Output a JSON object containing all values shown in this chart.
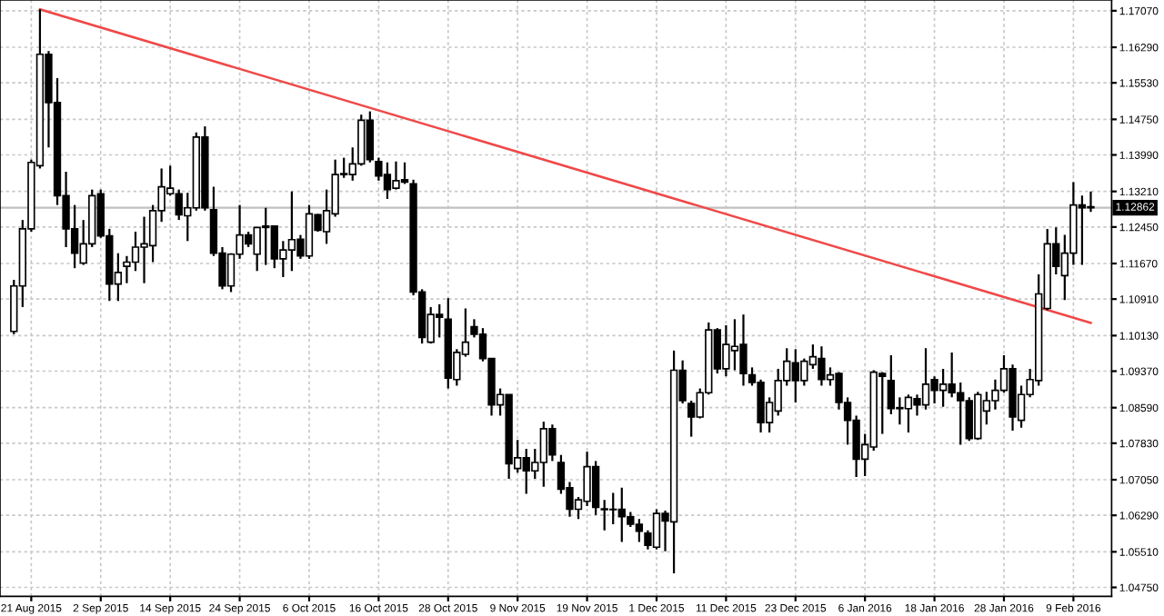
{
  "chart_data": {
    "type": "candlestick",
    "categories": [
      null,
      null,
      "21 Aug 2015",
      null,
      null,
      null,
      null,
      null,
      null,
      null,
      "2 Sep 2015",
      null,
      null,
      null,
      null,
      null,
      null,
      null,
      "14 Sep 2015",
      null,
      null,
      null,
      null,
      null,
      null,
      null,
      "24 Sep 2015",
      null,
      null,
      null,
      null,
      null,
      null,
      null,
      "6 Oct 2015",
      null,
      null,
      null,
      null,
      null,
      null,
      null,
      "16 Oct 2015",
      null,
      null,
      null,
      null,
      null,
      null,
      null,
      "28 Oct 2015",
      null,
      null,
      null,
      null,
      null,
      null,
      null,
      "9 Nov 2015",
      null,
      null,
      null,
      null,
      null,
      null,
      null,
      "19 Nov 2015",
      null,
      null,
      null,
      null,
      null,
      null,
      null,
      "1 Dec 2015",
      null,
      null,
      null,
      null,
      null,
      null,
      null,
      "11 Dec 2015",
      null,
      null,
      null,
      null,
      null,
      null,
      null,
      "23 Dec 2015",
      null,
      null,
      null,
      null,
      null,
      null,
      null,
      "6 Jan 2016",
      null,
      null,
      null,
      null,
      null,
      null,
      null,
      "18 Jan 2016",
      null,
      null,
      null,
      null,
      null,
      null,
      null,
      "28 Jan 2016",
      null,
      null,
      null,
      null,
      null,
      null,
      null,
      "9 Feb 2016",
      null,
      null
    ],
    "ohlc": [
      [
        1.1022,
        1.1132,
        1.1016,
        1.1119
      ],
      [
        1.1119,
        1.126,
        1.1074,
        1.1241
      ],
      [
        1.1241,
        1.1389,
        1.1235,
        1.1383
      ],
      [
        1.1376,
        1.171,
        1.137,
        1.1614
      ],
      [
        1.1614,
        1.1621,
        1.1415,
        1.1511
      ],
      [
        1.1511,
        1.1563,
        1.1292,
        1.1312
      ],
      [
        1.1312,
        1.1363,
        1.1202,
        1.1241
      ],
      [
        1.1241,
        1.1292,
        1.1157,
        1.1189
      ],
      [
        1.1168,
        1.126,
        1.1164,
        1.1209
      ],
      [
        1.1209,
        1.1325,
        1.1202,
        1.1312
      ],
      [
        1.1316,
        1.1325,
        1.1222,
        1.1226
      ],
      [
        1.1226,
        1.1241,
        1.1087,
        1.1123
      ],
      [
        1.1123,
        1.1189,
        1.1087,
        1.1148
      ],
      [
        1.1161,
        1.1183,
        1.1125,
        1.117
      ],
      [
        1.117,
        1.1235,
        1.1151,
        1.1202
      ],
      [
        1.1202,
        1.1267,
        1.1125,
        1.1209
      ],
      [
        1.1205,
        1.1292,
        1.117,
        1.128
      ],
      [
        1.128,
        1.137,
        1.1256,
        1.1331
      ],
      [
        1.1316,
        1.1376,
        1.1312,
        1.1328
      ],
      [
        1.1316,
        1.1325,
        1.126,
        1.1271
      ],
      [
        1.1269,
        1.1318,
        1.1215,
        1.1286
      ],
      [
        1.1286,
        1.1447,
        1.128,
        1.1437
      ],
      [
        1.1437,
        1.146,
        1.128,
        1.1286
      ],
      [
        1.1282,
        1.1331,
        1.1183,
        1.1189
      ],
      [
        1.1189,
        1.1202,
        1.1112,
        1.1119
      ],
      [
        1.1119,
        1.1189,
        1.1106,
        1.1187
      ],
      [
        1.1187,
        1.1292,
        1.1177,
        1.1228
      ],
      [
        1.1228,
        1.1235,
        1.1202,
        1.1209
      ],
      [
        1.1187,
        1.1244,
        1.1151,
        1.1244
      ],
      [
        1.1244,
        1.1286,
        1.1164,
        1.1247
      ],
      [
        1.1247,
        1.1247,
        1.1157,
        1.1177
      ],
      [
        1.1177,
        1.1215,
        1.1138,
        1.1196
      ],
      [
        1.1196,
        1.1321,
        1.1151,
        1.1218
      ],
      [
        1.1219,
        1.1228,
        1.1177,
        1.1183
      ],
      [
        1.1183,
        1.1292,
        1.1177,
        1.1273
      ],
      [
        1.1271,
        1.1273,
        1.1235,
        1.1238
      ],
      [
        1.1235,
        1.1325,
        1.1209,
        1.128
      ],
      [
        1.1273,
        1.1389,
        1.1267,
        1.1357
      ],
      [
        1.1357,
        1.1393,
        1.135,
        1.1359
      ],
      [
        1.1357,
        1.1415,
        1.1344,
        1.138
      ],
      [
        1.138,
        1.1485,
        1.1376,
        1.1473
      ],
      [
        1.1473,
        1.1492,
        1.1383,
        1.1389
      ],
      [
        1.1385,
        1.1393,
        1.1344,
        1.1354
      ],
      [
        1.1357,
        1.1383,
        1.1305,
        1.1325
      ],
      [
        1.1328,
        1.1385,
        1.1325,
        1.1344
      ],
      [
        1.1346,
        1.1383,
        1.1337,
        1.1341
      ],
      [
        1.1337,
        1.1346,
        1.1099,
        1.1106
      ],
      [
        1.1106,
        1.1112,
        1.0996,
        1.1009
      ],
      [
        1.0999,
        1.1074,
        1.0996,
        1.1058
      ],
      [
        1.1058,
        1.108,
        1.1009,
        1.1052
      ],
      [
        1.1048,
        1.1093,
        1.09,
        1.0922
      ],
      [
        1.0919,
        1.0984,
        1.0906,
        1.0977
      ],
      [
        1.0973,
        1.1071,
        1.0968,
        1.0999
      ],
      [
        1.1032,
        1.1048,
        1.1009,
        1.1016
      ],
      [
        1.1016,
        1.1029,
        1.0958,
        1.0964
      ],
      [
        1.0964,
        1.0964,
        1.0842,
        1.0865
      ],
      [
        1.0865,
        1.09,
        1.0842,
        1.0887
      ],
      [
        1.0887,
        1.0887,
        1.0707,
        1.0739
      ],
      [
        1.0729,
        1.079,
        1.072,
        1.0752
      ],
      [
        1.0752,
        1.0771,
        1.0675,
        1.0724
      ],
      [
        1.0724,
        1.0771,
        1.0707,
        1.0742
      ],
      [
        1.0742,
        1.0829,
        1.069,
        1.0814
      ],
      [
        1.0814,
        1.0823,
        1.0745,
        1.0758
      ],
      [
        1.0742,
        1.0758,
        1.0675,
        1.0685
      ],
      [
        1.0688,
        1.07,
        1.0626,
        1.0642
      ],
      [
        1.0642,
        1.0668,
        1.0621,
        1.0662
      ],
      [
        1.0659,
        1.0765,
        1.0649,
        1.0733
      ],
      [
        1.0733,
        1.0745,
        1.063,
        1.0646
      ],
      [
        1.0641,
        1.0662,
        1.0597,
        1.0643
      ],
      [
        1.0641,
        1.0677,
        1.061,
        1.0642
      ],
      [
        1.0642,
        1.0688,
        1.0572,
        1.0626
      ],
      [
        1.0626,
        1.0636,
        1.0604,
        1.061
      ],
      [
        1.061,
        1.0621,
        1.0572,
        1.0595
      ],
      [
        1.0591,
        1.0597,
        1.0556,
        1.0565
      ],
      [
        1.0561,
        1.0642,
        1.0556,
        1.0633
      ],
      [
        1.0633,
        1.0639,
        1.0552,
        1.0617
      ],
      [
        1.0615,
        1.0981,
        1.0505,
        1.0939
      ],
      [
        1.0939,
        1.096,
        1.0868,
        1.0874
      ],
      [
        1.0868,
        1.0874,
        1.0797,
        1.0839
      ],
      [
        1.0839,
        1.09,
        1.0836,
        1.0891
      ],
      [
        1.0891,
        1.1041,
        1.0887,
        1.1025
      ],
      [
        1.1025,
        1.1029,
        1.0932,
        1.0942
      ],
      [
        1.0942,
        1.1035,
        1.0926,
        1.0994
      ],
      [
        1.0981,
        1.1048,
        1.0939,
        1.099
      ],
      [
        1.0994,
        1.1058,
        1.0906,
        1.0932
      ],
      [
        1.0929,
        1.0945,
        1.0906,
        1.0913
      ],
      [
        1.0913,
        1.0919,
        1.0806,
        1.0827
      ],
      [
        1.0827,
        1.0881,
        1.0806,
        1.087
      ],
      [
        1.0852,
        1.0942,
        1.0842,
        1.0917
      ],
      [
        1.0917,
        1.0986,
        1.0906,
        1.0958
      ],
      [
        1.0955,
        1.0984,
        1.087,
        1.0917
      ],
      [
        1.0917,
        1.0964,
        1.0906,
        1.0958
      ],
      [
        1.0951,
        1.0994,
        1.0942,
        1.0968
      ],
      [
        1.0964,
        1.099,
        1.0906,
        1.0919
      ],
      [
        1.0919,
        1.0945,
        1.0906,
        1.0929
      ],
      [
        1.0932,
        1.0935,
        1.0855,
        1.087
      ],
      [
        1.087,
        1.0881,
        1.078,
        1.0832
      ],
      [
        1.0832,
        1.0842,
        1.0711,
        1.0749
      ],
      [
        1.0749,
        1.0803,
        1.0713,
        1.078
      ],
      [
        1.0775,
        1.0939,
        1.0767,
        1.0935
      ],
      [
        1.0932,
        1.0935,
        1.0803,
        1.0926
      ],
      [
        1.0917,
        1.0971,
        1.0845,
        1.0857
      ],
      [
        1.0857,
        1.0881,
        1.0823,
        1.0859
      ],
      [
        1.0857,
        1.0887,
        1.0806,
        1.0881
      ],
      [
        1.0878,
        1.0887,
        1.0842,
        1.0865
      ],
      [
        1.0865,
        1.0986,
        1.0855,
        1.0909
      ],
      [
        1.0919,
        1.0926,
        1.0868,
        1.0896
      ],
      [
        1.0896,
        1.0942,
        1.0861,
        1.0909
      ],
      [
        1.0909,
        1.0977,
        1.0881,
        1.0891
      ],
      [
        1.0891,
        1.0913,
        1.078,
        1.0874
      ],
      [
        1.0874,
        1.0881,
        1.0788,
        1.0793
      ],
      [
        1.0793,
        1.0893,
        1.079,
        1.0887
      ],
      [
        1.0852,
        1.0893,
        1.0823,
        1.0874
      ],
      [
        1.0874,
        1.0919,
        1.0855,
        1.0896
      ],
      [
        1.0896,
        1.0971,
        1.0891,
        1.0942
      ],
      [
        1.0942,
        1.0951,
        1.081,
        1.0839
      ],
      [
        1.0832,
        1.0906,
        1.0816,
        1.0887
      ],
      [
        1.0887,
        1.0942,
        1.0881,
        1.0919
      ],
      [
        1.0917,
        1.1144,
        1.0906,
        1.1102
      ],
      [
        1.1071,
        1.1241,
        1.1067,
        1.1209
      ],
      [
        1.1209,
        1.1244,
        1.1144,
        1.1161
      ],
      [
        1.1141,
        1.1228,
        1.1089,
        1.1189
      ],
      [
        1.1189,
        1.1341,
        1.1164,
        1.1292
      ],
      [
        1.1292,
        1.1312,
        1.1164,
        1.1286
      ],
      [
        1.1288,
        1.1321,
        1.1277,
        1.1286
      ]
    ],
    "series": [
      {
        "type": "line",
        "color": "#f04848",
        "values": [
          null,
          null,
          null,
          1.171,
          null,
          null,
          null,
          null,
          null,
          null,
          null,
          null,
          null,
          null,
          null,
          null,
          null,
          null,
          null,
          null,
          null,
          null,
          null,
          null,
          null,
          null,
          null,
          null,
          null,
          null,
          null,
          null,
          null,
          null,
          null,
          null,
          null,
          null,
          null,
          null,
          null,
          null,
          null,
          null,
          null,
          null,
          null,
          null,
          null,
          null,
          null,
          null,
          null,
          null,
          null,
          null,
          null,
          null,
          null,
          null,
          null,
          null,
          null,
          null,
          null,
          null,
          null,
          null,
          null,
          null,
          null,
          null,
          null,
          null,
          null,
          null,
          null,
          null,
          null,
          null,
          null,
          null,
          null,
          null,
          null,
          null,
          null,
          null,
          null,
          null,
          null,
          null,
          null,
          null,
          null,
          null,
          null,
          null,
          null,
          null,
          null,
          null,
          null,
          null,
          null,
          null,
          null,
          null,
          null,
          null,
          null,
          null,
          null,
          null,
          null,
          null,
          null,
          null,
          null,
          null,
          null,
          null,
          null,
          null,
          1.104
        ]
      }
    ],
    "ylim": [
      1.0456,
      1.173
    ],
    "yticks": [
      {
        "value": 1.0475,
        "label": "1.04750"
      },
      {
        "value": 1.0551,
        "label": "1.05510"
      },
      {
        "value": 1.0629,
        "label": "1.06290"
      },
      {
        "value": 1.0705,
        "label": "1.07050"
      },
      {
        "value": 1.0783,
        "label": "1.07830"
      },
      {
        "value": 1.0859,
        "label": "1.08590"
      },
      {
        "value": 1.0937,
        "label": "1.09370"
      },
      {
        "value": 1.1013,
        "label": "1.10130"
      },
      {
        "value": 1.1091,
        "label": "1.10910"
      },
      {
        "value": 1.1167,
        "label": "1.11670"
      },
      {
        "value": 1.1245,
        "label": "1.12450"
      },
      {
        "value": 1.1321,
        "label": "1.13210"
      },
      {
        "value": 1.1399,
        "label": "1.13990"
      },
      {
        "value": 1.1475,
        "label": "1.14750"
      },
      {
        "value": 1.1553,
        "label": "1.15530"
      },
      {
        "value": 1.1629,
        "label": "1.16290"
      },
      {
        "value": 1.1707,
        "label": "1.17070"
      }
    ],
    "ref_lines": [
      {
        "axis": "y",
        "value": 1.12862,
        "label": "1.12862",
        "color": "#c0c0c0"
      }
    ],
    "grid": true
  }
}
